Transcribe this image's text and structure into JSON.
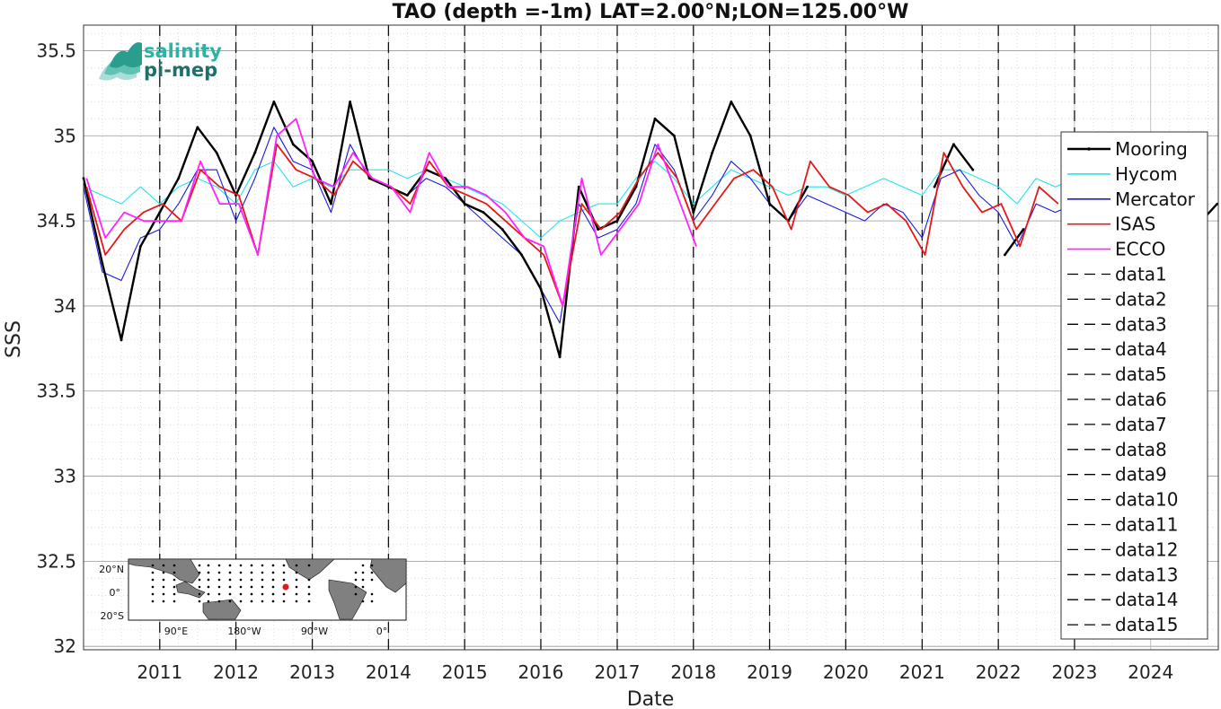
{
  "chart_data": {
    "type": "line",
    "title": "TAO (depth =-1m) LAT=2.00°N;LON=125.00°W",
    "xlabel": "Date",
    "ylabel": "SSS",
    "xlim": [
      "2010-01-01",
      "2024-11-20"
    ],
    "ylim": [
      31.98,
      35.65
    ],
    "grid": true,
    "legend_position": "right",
    "x_ticks": [
      "2011",
      "2012",
      "2013",
      "2014",
      "2015",
      "2016",
      "2017",
      "2018",
      "2019",
      "2020",
      "2021",
      "2022",
      "2023",
      "2024"
    ],
    "y_ticks": [
      "32",
      "32.5",
      "33",
      "33.5",
      "34",
      "34.5",
      "35",
      "35.5"
    ],
    "vertical_dashed_lines": [
      "2011-01-01",
      "2012-01-01",
      "2013-01-01",
      "2014-01-01",
      "2015-01-01",
      "2016-01-01",
      "2017-01-01",
      "2018-01-01",
      "2019-01-01",
      "2020-01-01",
      "2021-01-01",
      "2022-01-01",
      "2023-01-01"
    ],
    "series": [
      {
        "name": "Mooring",
        "color": "#000000",
        "x": [
          "2010-01-01",
          "2010-04-01",
          "2010-07-01",
          "2010-10-01",
          "2011-01-01",
          "2011-04-01",
          "2011-07-01",
          "2011-10-01",
          "2012-01-01",
          "2012-04-01",
          "2012-07-01",
          "2012-10-01",
          "2013-01-01",
          "2013-04-01",
          "2013-07-01",
          "2013-10-01",
          "2014-01-01",
          "2014-04-01",
          "2014-07-01",
          "2014-10-01",
          "2015-01-01",
          "2015-04-01",
          "2015-07-01",
          "2015-10-01",
          "2016-01-01",
          "2016-04-01",
          "2016-07-01",
          "2016-10-01",
          "2017-01-01",
          "2017-04-01",
          "2017-07-01",
          "2017-10-01",
          "2018-01-01",
          "2018-04-01",
          "2018-07-01",
          "2018-10-01",
          "2019-01-01",
          "2019-04-01",
          "2019-07-01",
          null,
          "2021-03-01",
          "2021-06-01",
          "2021-09-01",
          null,
          "2022-02-01",
          "2022-05-01",
          null,
          "2024-09-01",
          "2024-11-15"
        ],
        "y": [
          34.75,
          34.25,
          33.8,
          34.35,
          34.55,
          34.75,
          35.05,
          34.9,
          34.65,
          34.9,
          35.2,
          34.95,
          34.85,
          34.6,
          35.2,
          34.75,
          34.7,
          34.65,
          34.8,
          34.75,
          34.6,
          34.55,
          34.45,
          34.3,
          34.1,
          33.7,
          34.7,
          34.45,
          34.5,
          34.7,
          35.1,
          35.0,
          34.55,
          34.9,
          35.2,
          35.0,
          34.6,
          34.5,
          34.7,
          null,
          34.7,
          34.95,
          34.8,
          null,
          34.3,
          34.45,
          null,
          34.5,
          34.6
        ]
      },
      {
        "name": "Hycom",
        "color": "#22e6ea",
        "x": [
          "2010-01-01",
          "2010-04-01",
          "2010-07-01",
          "2010-10-01",
          "2011-01-01",
          "2011-04-01",
          "2011-07-01",
          "2011-10-01",
          "2012-01-01",
          "2012-04-01",
          "2012-07-01",
          "2012-10-01",
          "2013-01-01",
          "2013-04-01",
          "2013-07-01",
          "2013-10-01",
          "2014-01-01",
          "2014-04-01",
          "2014-07-01",
          "2014-10-01",
          "2015-01-01",
          "2015-04-01",
          "2015-07-01",
          "2015-10-01",
          "2016-01-01",
          "2016-04-01",
          "2016-07-01",
          "2016-10-01",
          "2017-01-01",
          "2017-04-01",
          "2017-07-01",
          "2017-10-01",
          "2018-01-01",
          "2018-04-01",
          "2018-07-01",
          "2018-10-01",
          "2019-01-01",
          "2019-04-01",
          "2019-07-01",
          "2019-10-01",
          "2020-01-01",
          "2020-04-01",
          "2020-07-01",
          "2020-10-01",
          "2021-01-01",
          "2021-04-01",
          "2021-07-01",
          "2021-10-01",
          "2022-01-01",
          "2022-04-01",
          "2022-07-01",
          "2022-10-01",
          "2023-01-01",
          "2023-04-01",
          "2023-07-01",
          "2023-10-01",
          "2024-01-01",
          "2024-04-01",
          "2024-07-01",
          "2024-10-01"
        ],
        "y": [
          34.7,
          34.65,
          34.6,
          34.7,
          34.6,
          34.7,
          34.75,
          34.7,
          34.6,
          34.8,
          34.85,
          34.7,
          34.75,
          34.7,
          34.8,
          34.8,
          34.8,
          34.75,
          34.8,
          34.75,
          34.7,
          34.65,
          34.6,
          34.5,
          34.4,
          34.5,
          34.55,
          34.6,
          34.6,
          34.75,
          34.85,
          34.75,
          34.6,
          34.7,
          34.8,
          34.75,
          34.7,
          34.65,
          34.7,
          34.7,
          34.65,
          34.7,
          34.75,
          34.7,
          34.65,
          34.8,
          34.8,
          34.75,
          34.7,
          34.6,
          34.75,
          34.7,
          34.75,
          34.8,
          34.9,
          34.85,
          34.8,
          34.75,
          34.7,
          34.7
        ]
      },
      {
        "name": "Mercator",
        "color": "#1a1adb",
        "x": [
          "2010-01-01",
          "2010-04-01",
          "2010-07-01",
          "2010-10-01",
          "2011-01-01",
          "2011-04-01",
          "2011-07-01",
          "2011-10-01",
          "2012-01-01",
          "2012-04-01",
          "2012-07-01",
          "2012-10-01",
          "2013-01-01",
          "2013-04-01",
          "2013-07-01",
          "2013-10-01",
          "2014-01-01",
          "2014-04-01",
          "2014-07-01",
          "2014-10-01",
          "2015-01-01",
          "2015-04-01",
          "2015-07-01",
          "2015-10-01",
          "2016-01-01",
          "2016-04-01",
          "2016-07-01",
          "2016-10-01",
          "2017-01-01",
          "2017-04-01",
          "2017-07-01",
          "2017-10-01",
          "2018-01-01",
          "2018-04-01",
          "2018-07-01",
          "2018-10-01",
          "2019-01-01",
          "2019-04-01",
          "2019-07-01",
          "2019-10-01",
          "2020-01-01",
          "2020-04-01",
          "2020-07-01",
          "2020-10-01",
          "2021-01-01",
          "2021-04-01",
          "2021-07-01",
          "2021-10-01",
          "2022-01-01",
          "2022-04-01",
          "2022-07-01",
          "2022-10-01",
          "2023-01-01",
          "2023-04-01",
          "2023-07-01",
          "2023-10-01",
          "2024-01-01",
          "2024-04-01",
          "2024-07-01",
          "2024-10-01"
        ],
        "y": [
          34.7,
          34.2,
          34.15,
          34.4,
          34.45,
          34.6,
          34.8,
          34.8,
          34.5,
          34.75,
          35.05,
          34.85,
          34.8,
          34.55,
          34.95,
          34.75,
          34.7,
          34.65,
          34.75,
          34.7,
          34.6,
          34.5,
          34.4,
          34.3,
          34.1,
          33.9,
          34.6,
          34.4,
          34.45,
          34.6,
          34.95,
          34.8,
          34.5,
          34.65,
          34.85,
          34.75,
          34.6,
          34.5,
          34.65,
          34.6,
          34.55,
          34.5,
          34.6,
          34.55,
          34.4,
          34.75,
          34.8,
          34.65,
          34.55,
          34.35,
          34.6,
          34.55,
          34.6,
          34.7,
          34.9,
          34.8,
          34.7,
          34.6,
          34.55,
          34.5
        ]
      },
      {
        "name": "ISAS",
        "color": "#e41a1a",
        "x": [
          "2010-01-15",
          "2010-04-15",
          "2010-07-15",
          "2010-10-15",
          "2011-01-15",
          "2011-04-15",
          "2011-07-15",
          "2011-10-15",
          "2012-01-15",
          "2012-04-15",
          "2012-07-15",
          "2012-10-15",
          "2013-01-15",
          "2013-04-15",
          "2013-07-15",
          "2013-10-15",
          "2014-01-15",
          "2014-04-15",
          "2014-07-15",
          "2014-10-15",
          "2015-01-15",
          "2015-04-15",
          "2015-07-15",
          "2015-10-15",
          "2016-01-15",
          "2016-04-15",
          "2016-07-15",
          "2016-10-15",
          "2017-01-15",
          "2017-04-15",
          "2017-07-15",
          "2017-10-15",
          "2018-01-15",
          "2018-04-15",
          "2018-07-15",
          "2018-10-15",
          "2019-01-15",
          "2019-04-15",
          "2019-07-15",
          "2019-10-15",
          "2020-01-15",
          "2020-04-15",
          "2020-07-15",
          "2020-10-15",
          "2021-01-15",
          "2021-04-15",
          "2021-07-15",
          "2021-10-15",
          "2022-01-15",
          "2022-04-15",
          "2022-07-15",
          "2022-10-15"
        ],
        "y": [
          34.7,
          34.3,
          34.45,
          34.55,
          34.6,
          34.5,
          34.8,
          34.7,
          34.65,
          34.3,
          34.95,
          34.8,
          34.75,
          34.65,
          34.85,
          34.75,
          34.7,
          34.6,
          34.85,
          34.7,
          34.65,
          34.6,
          34.5,
          34.4,
          34.3,
          34.0,
          34.6,
          34.45,
          34.55,
          34.75,
          34.9,
          34.75,
          34.45,
          34.6,
          34.75,
          34.8,
          34.7,
          34.45,
          34.85,
          34.7,
          34.65,
          34.55,
          34.6,
          34.5,
          34.3,
          34.9,
          34.7,
          34.55,
          34.6,
          34.35,
          34.7,
          34.6
        ]
      },
      {
        "name": "ECCO",
        "color": "#ff22ff",
        "x": [
          "2010-01-15",
          "2010-04-15",
          "2010-07-15",
          "2010-10-15",
          "2011-01-15",
          "2011-04-15",
          "2011-07-15",
          "2011-10-15",
          "2012-01-15",
          "2012-04-15",
          "2012-07-15",
          "2012-10-15",
          "2013-01-15",
          "2013-04-15",
          "2013-07-15",
          "2013-10-15",
          "2014-01-15",
          "2014-04-15",
          "2014-07-15",
          "2014-10-15",
          "2015-01-15",
          "2015-04-15",
          "2015-07-15",
          "2015-10-15",
          "2016-01-15",
          "2016-04-15",
          "2016-07-15",
          "2016-10-15",
          "2017-01-15",
          "2017-04-15",
          "2017-07-15",
          "2017-10-15",
          "2018-01-15"
        ],
        "y": [
          34.75,
          34.4,
          34.55,
          34.5,
          34.5,
          34.5,
          34.85,
          34.6,
          34.6,
          34.3,
          35.0,
          35.1,
          34.75,
          34.7,
          34.9,
          34.75,
          34.7,
          34.55,
          34.9,
          34.7,
          34.7,
          34.65,
          34.55,
          34.4,
          34.35,
          34.0,
          34.75,
          34.3,
          34.45,
          34.6,
          34.95,
          34.65,
          34.35
        ]
      },
      {
        "name": "data1",
        "color": "#000000",
        "dashed": true
      },
      {
        "name": "data2",
        "color": "#000000",
        "dashed": true
      },
      {
        "name": "data3",
        "color": "#000000",
        "dashed": true
      },
      {
        "name": "data4",
        "color": "#000000",
        "dashed": true
      },
      {
        "name": "data5",
        "color": "#000000",
        "dashed": true
      },
      {
        "name": "data6",
        "color": "#000000",
        "dashed": true
      },
      {
        "name": "data7",
        "color": "#000000",
        "dashed": true
      },
      {
        "name": "data8",
        "color": "#000000",
        "dashed": true
      },
      {
        "name": "data9",
        "color": "#000000",
        "dashed": true
      },
      {
        "name": "data10",
        "color": "#000000",
        "dashed": true
      },
      {
        "name": "data11",
        "color": "#000000",
        "dashed": true
      },
      {
        "name": "data12",
        "color": "#000000",
        "dashed": true
      },
      {
        "name": "data13",
        "color": "#000000",
        "dashed": true
      },
      {
        "name": "data14",
        "color": "#000000",
        "dashed": true
      },
      {
        "name": "data15",
        "color": "#000000",
        "dashed": true
      }
    ]
  },
  "logo": {
    "line1": "salinity",
    "line2": "pi-mep",
    "color1": "#2bb3a3",
    "color2": "#1f7f7a"
  },
  "inset_map": {
    "lat_labels": [
      "20°N",
      "0°",
      "20°S"
    ],
    "lon_labels": [
      "90°E",
      "180°W",
      "90°W",
      "0°"
    ],
    "marker_color": "#e41a1a"
  }
}
